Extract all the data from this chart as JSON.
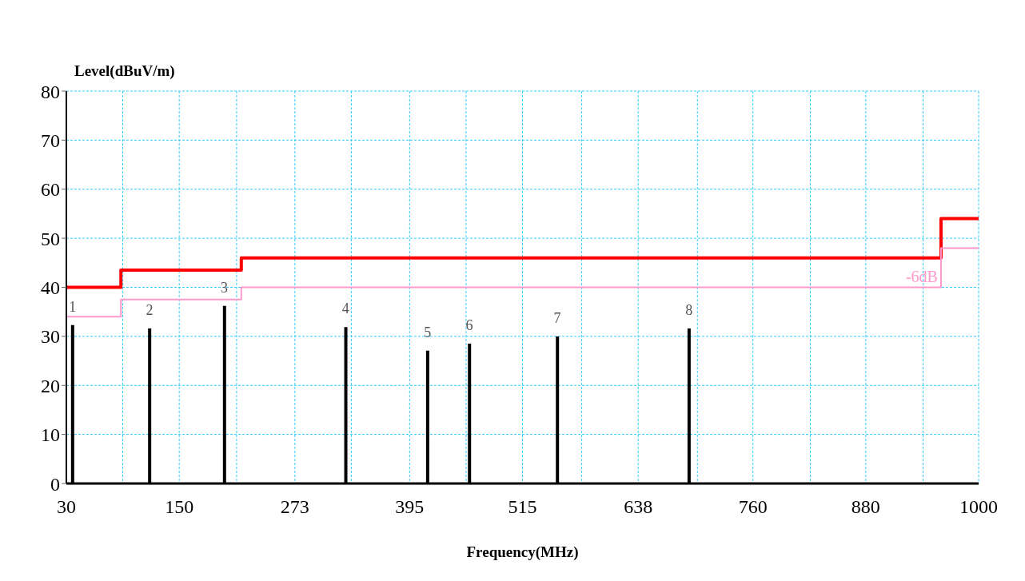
{
  "chart_data": {
    "type": "bar",
    "xlabel": "Frequency(MHz)",
    "ylabel": "Level(dBuV/m)",
    "xlim": [
      30,
      1000
    ],
    "xticks": [
      30,
      {
        "value": 90,
        "label": null
      },
      150,
      {
        "value": 211,
        "label": null
      },
      273,
      {
        "value": 333,
        "label": null
      },
      395,
      {
        "value": 455,
        "label": null
      },
      515,
      {
        "value": 578,
        "label": null
      },
      638,
      {
        "value": 701,
        "label": null
      },
      760,
      {
        "value": 821,
        "label": null
      },
      880,
      {
        "value": 941,
        "label": null
      },
      1000
    ],
    "ylim": [
      0,
      80
    ],
    "yticks": [
      0,
      10,
      20,
      30,
      40,
      50,
      60,
      70,
      80
    ],
    "grid": true,
    "annotations": [
      {
        "text": "1",
        "x": 36.5,
        "y": 32.3
      },
      {
        "text": "2",
        "x": 118.4,
        "y": 31.6
      },
      {
        "text": "3",
        "x": 198,
        "y": 36.2
      },
      {
        "text": "4",
        "x": 327,
        "y": 31.9
      },
      {
        "text": "5",
        "x": 414,
        "y": 27.1
      },
      {
        "text": "6",
        "x": 458.5,
        "y": 28.5
      },
      {
        "text": "7",
        "x": 552,
        "y": 30.0
      },
      {
        "text": "8",
        "x": 692,
        "y": 31.6
      }
    ],
    "series": [
      {
        "color": "#000000",
        "x": [
          36.5,
          118.4,
          198,
          327,
          414,
          458.5,
          552,
          692
        ],
        "values": [
          32.3,
          31.6,
          36.2,
          31.9,
          27.1,
          28.5,
          30.0,
          31.6
        ]
      },
      {
        "type": "step",
        "color": "#ff0000",
        "x": [
          30,
          88,
          216,
          960,
          1000
        ],
        "values": [
          40,
          43.5,
          46,
          54,
          54
        ]
      },
      {
        "type": "step",
        "name": "-6dB",
        "color": "#ff99cc",
        "x": [
          30,
          88,
          216,
          960,
          1000
        ],
        "values": [
          34,
          37.5,
          40,
          48,
          48
        ]
      }
    ]
  }
}
